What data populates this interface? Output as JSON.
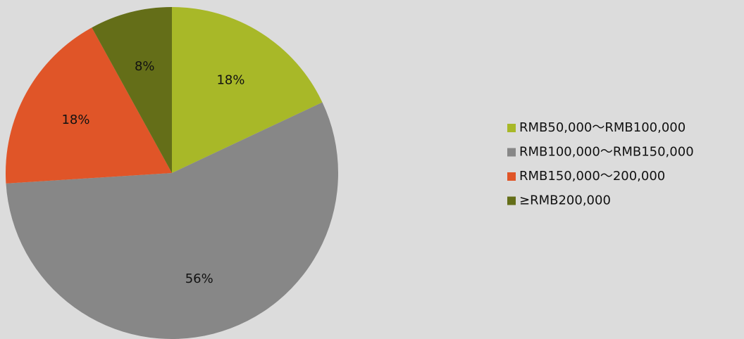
{
  "chart_data": {
    "type": "pie",
    "categories": [
      "RMB50,000～RMB100,000",
      "RMB100,000～RMB150,000",
      "RMB150,000～200,000",
      "≥RMB200,000"
    ],
    "values": [
      18,
      56,
      18,
      8
    ],
    "value_labels": [
      "18%",
      "56%",
      "18%",
      "8%"
    ],
    "colors": [
      "#a8b828",
      "#878787",
      "#e05528",
      "#646e18"
    ],
    "legend": "right"
  }
}
